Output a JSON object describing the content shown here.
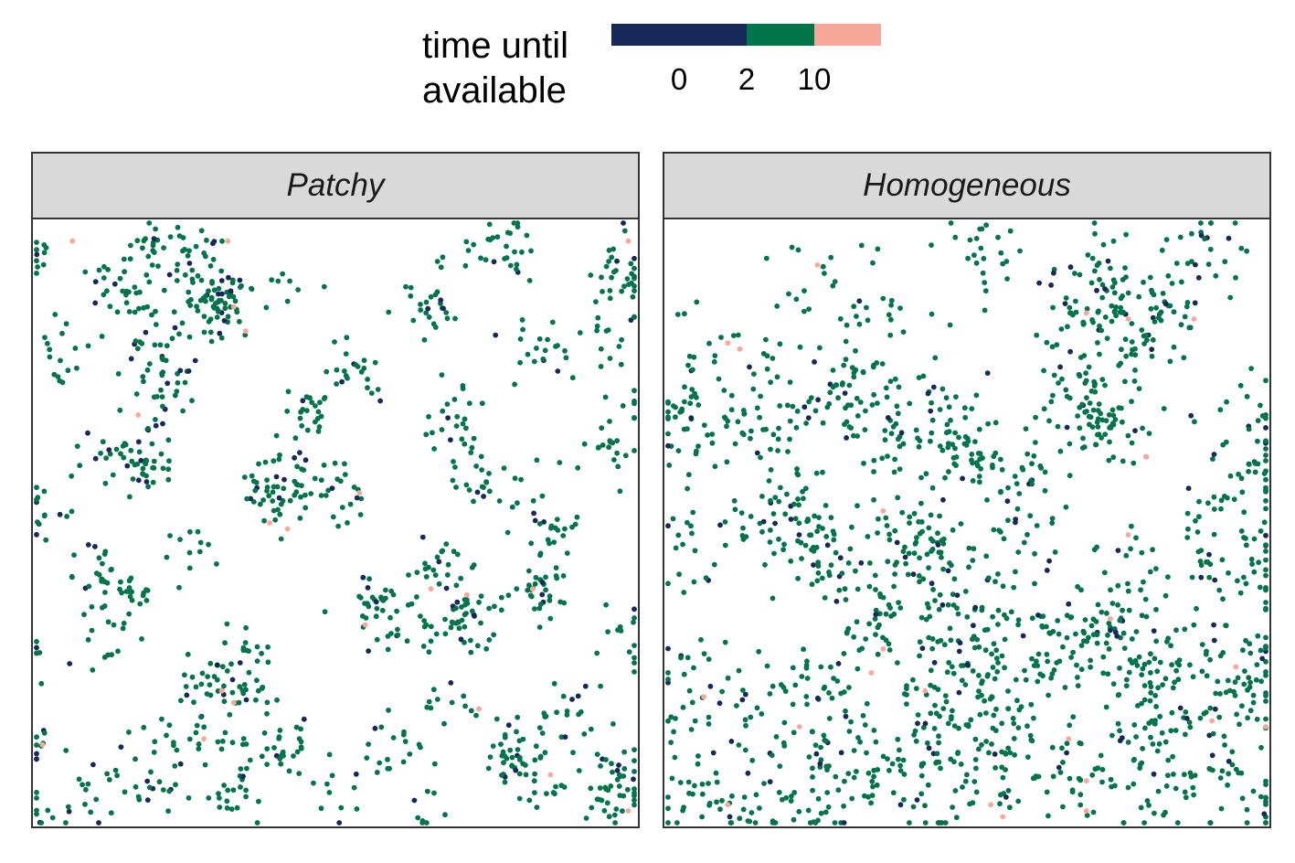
{
  "legend": {
    "title_line1": "time until",
    "title_line2": "available",
    "labels": [
      "0",
      "2",
      "10"
    ],
    "colors": {
      "c0": "#16295a",
      "c2": "#00754a",
      "c10": "#f7a89a"
    }
  },
  "chart_data": [
    {
      "type": "scatter",
      "panel": "Patchy",
      "title": "",
      "xlabel": "",
      "ylabel": "",
      "xlim": [
        0,
        1
      ],
      "ylim": [
        0,
        1
      ],
      "grid": false,
      "legend_position": "top",
      "color_scale": {
        "breaks": [
          0,
          2,
          10
        ],
        "colors": [
          "#16295a",
          "#00754a",
          "#f7a89a"
        ]
      },
      "clusters": [
        [
          0.205,
          0.965,
          28
        ],
        [
          0.28,
          0.94,
          18
        ],
        [
          0.78,
          0.96,
          28
        ],
        [
          0.97,
          0.92,
          30
        ],
        [
          0.01,
          0.95,
          10
        ],
        [
          0.13,
          0.9,
          12
        ],
        [
          0.3,
          0.875,
          70
        ],
        [
          0.17,
          0.86,
          25
        ],
        [
          0.41,
          0.9,
          10
        ],
        [
          0.67,
          0.87,
          28
        ],
        [
          0.855,
          0.79,
          22
        ],
        [
          0.97,
          0.82,
          14
        ],
        [
          0.19,
          0.77,
          18
        ],
        [
          0.05,
          0.77,
          16
        ],
        [
          0.21,
          0.72,
          28
        ],
        [
          0.53,
          0.75,
          22
        ],
        [
          0.45,
          0.68,
          24
        ],
        [
          0.7,
          0.67,
          24
        ],
        [
          0.99,
          0.68,
          14
        ],
        [
          0.42,
          0.58,
          22
        ],
        [
          0.18,
          0.6,
          32
        ],
        [
          0.13,
          0.61,
          20
        ],
        [
          0.75,
          0.56,
          26
        ],
        [
          0.95,
          0.62,
          14
        ],
        [
          0.39,
          0.55,
          34
        ],
        [
          0.01,
          0.53,
          14
        ],
        [
          0.51,
          0.54,
          20
        ],
        [
          0.85,
          0.49,
          24
        ],
        [
          0.09,
          0.43,
          18
        ],
        [
          0.15,
          0.38,
          26
        ],
        [
          0.27,
          0.44,
          12
        ],
        [
          0.68,
          0.43,
          24
        ],
        [
          0.84,
          0.39,
          32
        ],
        [
          0.56,
          0.36,
          30
        ],
        [
          0.72,
          0.34,
          42
        ],
        [
          0.63,
          0.33,
          16
        ],
        [
          0.98,
          0.32,
          14
        ],
        [
          0.11,
          0.3,
          10
        ],
        [
          0.35,
          0.28,
          12
        ],
        [
          0.34,
          0.24,
          32
        ],
        [
          0.69,
          0.21,
          12
        ],
        [
          0.88,
          0.2,
          16
        ],
        [
          0.27,
          0.22,
          14
        ],
        [
          0.01,
          0.28,
          8
        ],
        [
          0.01,
          0.13,
          10
        ],
        [
          0.28,
          0.13,
          20
        ],
        [
          0.41,
          0.14,
          30
        ],
        [
          0.6,
          0.13,
          20
        ],
        [
          0.8,
          0.11,
          44
        ],
        [
          0.96,
          0.1,
          18
        ],
        [
          0.19,
          0.14,
          10
        ],
        [
          0.2,
          0.05,
          14
        ],
        [
          0.33,
          0.04,
          22
        ],
        [
          0.5,
          0.04,
          10
        ],
        [
          0.66,
          0.02,
          8
        ],
        [
          0.96,
          0.04,
          30
        ],
        [
          0.11,
          0.06,
          16
        ],
        [
          0.01,
          0.02,
          10
        ],
        [
          0.86,
          0.05,
          12
        ]
      ],
      "pink_points": [
        [
          0.06,
          0.97
        ],
        [
          0.32,
          0.97
        ],
        [
          0.99,
          0.97
        ],
        [
          0.33,
          0.86
        ],
        [
          0.35,
          0.82
        ],
        [
          0.17,
          0.68
        ],
        [
          0.54,
          0.55
        ],
        [
          0.39,
          0.5
        ],
        [
          0.42,
          0.49
        ],
        [
          0.66,
          0.39
        ],
        [
          0.72,
          0.38
        ],
        [
          0.83,
          0.39
        ],
        [
          0.31,
          0.22
        ],
        [
          0.33,
          0.2
        ],
        [
          0.55,
          0.33
        ],
        [
          0.74,
          0.19
        ],
        [
          0.28,
          0.14
        ],
        [
          0.01,
          0.13
        ],
        [
          0.86,
          0.08
        ],
        [
          0.99,
          0.02
        ]
      ],
      "navy_fraction": 0.12
    },
    {
      "type": "scatter",
      "panel": "Homogeneous",
      "title": "",
      "xlabel": "",
      "ylabel": "",
      "xlim": [
        0,
        1
      ],
      "ylim": [
        0,
        1
      ],
      "grid": false,
      "legend_position": "top",
      "color_scale": {
        "breaks": [
          0,
          2,
          10
        ],
        "colors": [
          "#16295a",
          "#00754a",
          "#f7a89a"
        ]
      },
      "clusters": [
        [
          0.25,
          0.9,
          16
        ],
        [
          0.52,
          0.96,
          24
        ],
        [
          0.88,
          0.95,
          30
        ],
        [
          0.7,
          0.88,
          60
        ],
        [
          0.8,
          0.84,
          60
        ],
        [
          0.35,
          0.85,
          20
        ],
        [
          0.06,
          0.8,
          18
        ],
        [
          0.3,
          0.73,
          40
        ],
        [
          0.42,
          0.7,
          36
        ],
        [
          0.7,
          0.73,
          40
        ],
        [
          0.73,
          0.67,
          60
        ],
        [
          0.05,
          0.67,
          50
        ],
        [
          0.17,
          0.68,
          40
        ],
        [
          0.5,
          0.63,
          40
        ],
        [
          0.58,
          0.57,
          40
        ],
        [
          0.97,
          0.65,
          30
        ],
        [
          0.98,
          0.57,
          20
        ],
        [
          0.35,
          0.62,
          30
        ],
        [
          0.2,
          0.5,
          60
        ],
        [
          0.42,
          0.46,
          70
        ],
        [
          0.55,
          0.44,
          30
        ],
        [
          0.28,
          0.42,
          40
        ],
        [
          0.78,
          0.4,
          30
        ],
        [
          0.9,
          0.47,
          30
        ],
        [
          0.98,
          0.44,
          30
        ],
        [
          0.05,
          0.45,
          20
        ],
        [
          0.36,
          0.32,
          40
        ],
        [
          0.48,
          0.3,
          60
        ],
        [
          0.61,
          0.3,
          40
        ],
        [
          0.72,
          0.3,
          50
        ],
        [
          0.82,
          0.26,
          40
        ],
        [
          0.93,
          0.22,
          40
        ],
        [
          0.98,
          0.28,
          30
        ],
        [
          0.25,
          0.21,
          40
        ],
        [
          0.13,
          0.2,
          20
        ],
        [
          0.03,
          0.22,
          20
        ],
        [
          0.46,
          0.17,
          50
        ],
        [
          0.58,
          0.19,
          40
        ],
        [
          0.78,
          0.15,
          40
        ],
        [
          0.9,
          0.12,
          30
        ],
        [
          0.55,
          0.09,
          40
        ],
        [
          0.36,
          0.1,
          40
        ],
        [
          0.2,
          0.1,
          30
        ],
        [
          0.06,
          0.08,
          30
        ],
        [
          0.43,
          0.03,
          20
        ],
        [
          0.7,
          0.05,
          30
        ],
        [
          0.85,
          0.05,
          20
        ],
        [
          0.98,
          0.03,
          20
        ],
        [
          0.26,
          0.03,
          20
        ],
        [
          0.1,
          0.02,
          20
        ]
      ],
      "pink_points": [
        [
          0.25,
          0.93
        ],
        [
          0.1,
          0.8
        ],
        [
          0.12,
          0.79
        ],
        [
          0.7,
          0.85
        ],
        [
          0.77,
          0.84
        ],
        [
          0.88,
          0.84
        ],
        [
          0.8,
          0.61
        ],
        [
          0.36,
          0.52
        ],
        [
          0.77,
          0.48
        ],
        [
          0.36,
          0.29
        ],
        [
          0.34,
          0.25
        ],
        [
          0.43,
          0.22
        ],
        [
          0.74,
          0.34
        ],
        [
          0.06,
          0.21
        ],
        [
          0.22,
          0.16
        ],
        [
          0.67,
          0.14
        ],
        [
          0.95,
          0.26
        ],
        [
          0.91,
          0.17
        ],
        [
          1.0,
          0.16
        ],
        [
          0.7,
          0.07
        ],
        [
          0.1,
          0.03
        ],
        [
          0.54,
          0.03
        ],
        [
          0.7,
          0.02
        ],
        [
          0.56,
          0.01
        ]
      ],
      "navy_fraction": 0.09
    }
  ],
  "panels": [
    {
      "strip": "Patchy"
    },
    {
      "strip": "Homogeneous"
    }
  ]
}
